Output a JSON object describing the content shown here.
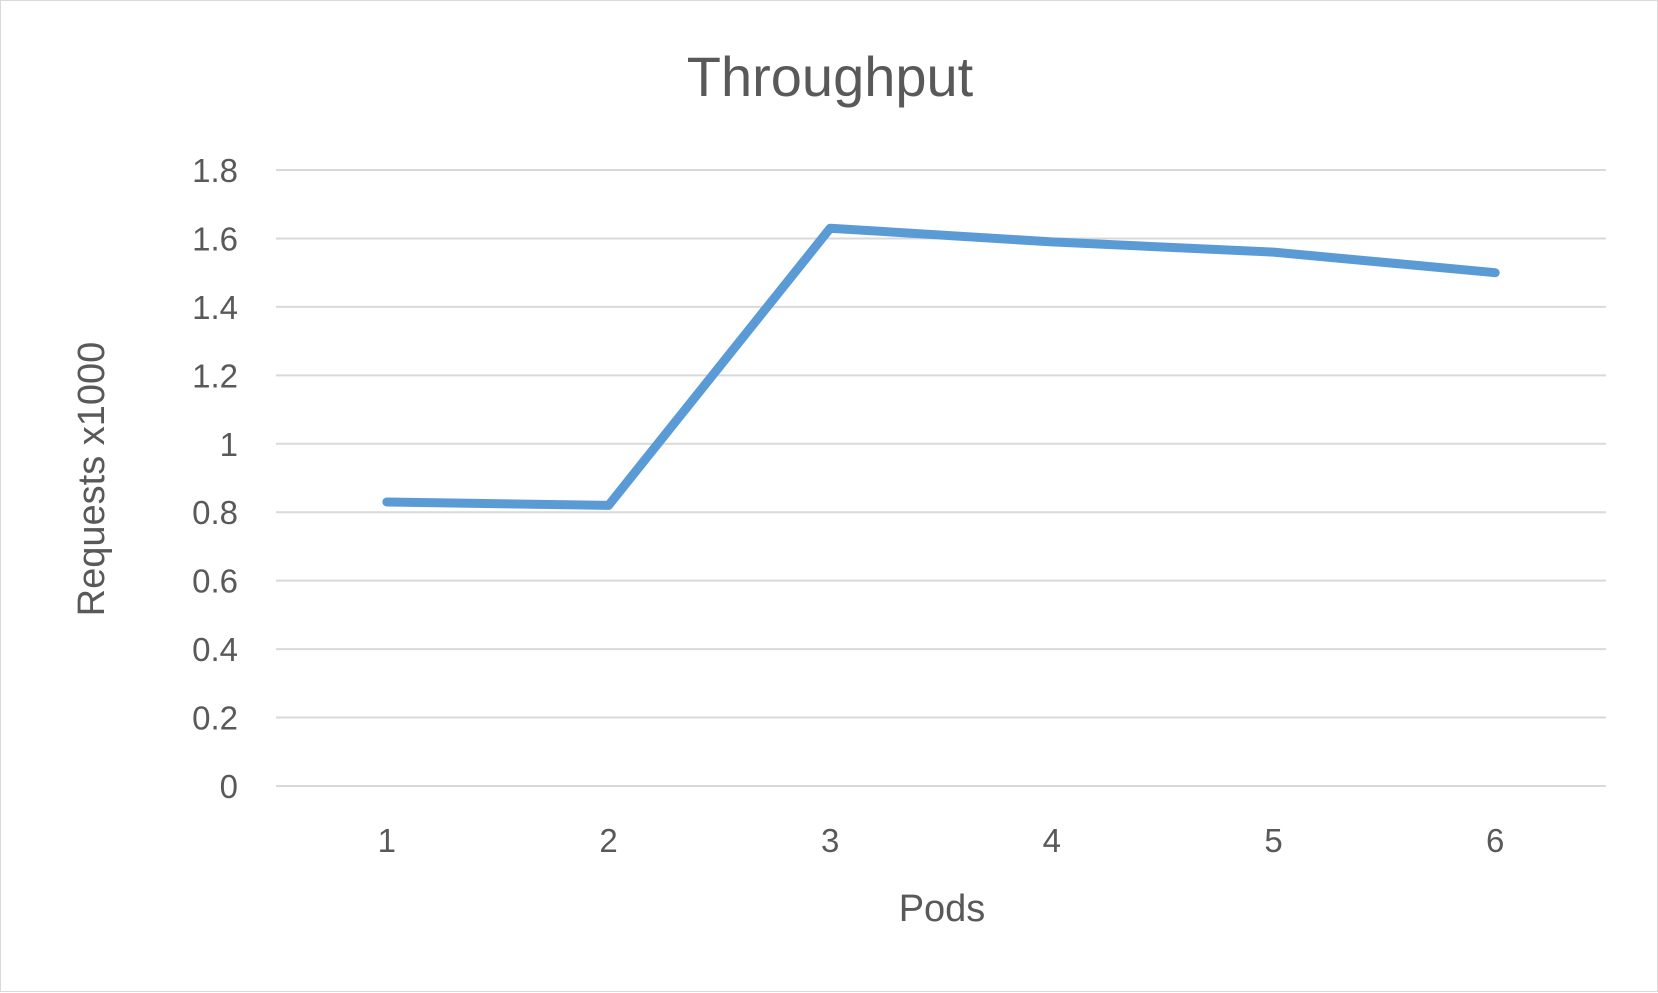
{
  "chart_data": {
    "type": "line",
    "title": "Throughput",
    "xlabel": "Pods",
    "ylabel": "Requests x1000",
    "categories": [
      "1",
      "2",
      "3",
      "4",
      "5",
      "6"
    ],
    "series": [
      {
        "values": [
          0.83,
          0.82,
          1.63,
          1.59,
          1.56,
          1.5
        ],
        "color": "#5b9bd5"
      }
    ],
    "ylim": [
      0,
      1.8
    ],
    "yticks": [
      "0",
      "0.2",
      "0.4",
      "0.6",
      "0.8",
      "1",
      "1.2",
      "1.4",
      "1.6",
      "1.8"
    ],
    "grid": true,
    "legend": "none"
  }
}
